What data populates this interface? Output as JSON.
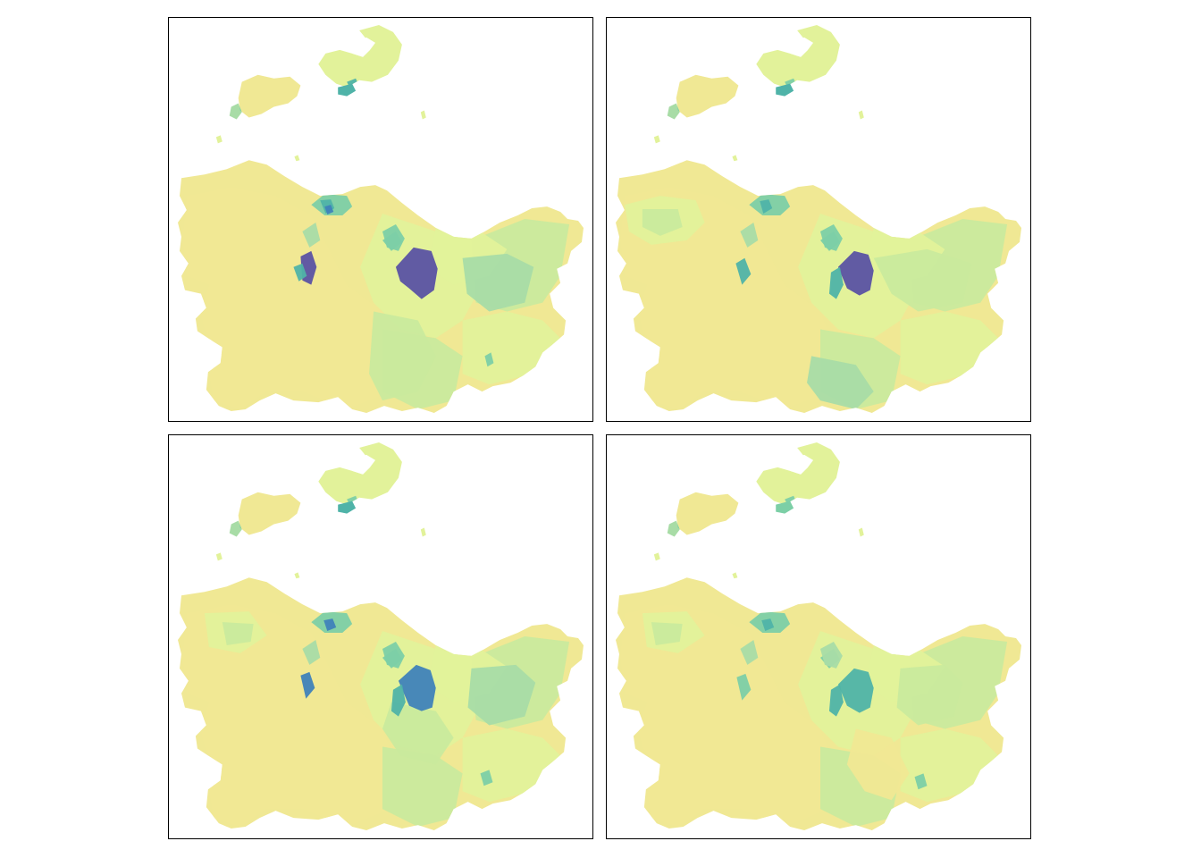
{
  "map_type": "choropleth small multiples",
  "panel_count": 4,
  "legend": "none",
  "palette": {
    "c1": "#f0e894",
    "c2": "#e2f29a",
    "c3": "#c9ea9d",
    "c4": "#a8dca6",
    "c5": "#7ccfa6",
    "c6": "#4fb3a8",
    "c7": "#3f82b9",
    "c8": "#5a52a3",
    "background": "#ffffff",
    "border": "#000000"
  },
  "panels": [
    {
      "id": "panel-1",
      "core_class": "c8"
    },
    {
      "id": "panel-2",
      "core_class": "c8"
    },
    {
      "id": "panel-3",
      "core_class": "c7"
    },
    {
      "id": "panel-4",
      "core_class": "c6"
    }
  ]
}
